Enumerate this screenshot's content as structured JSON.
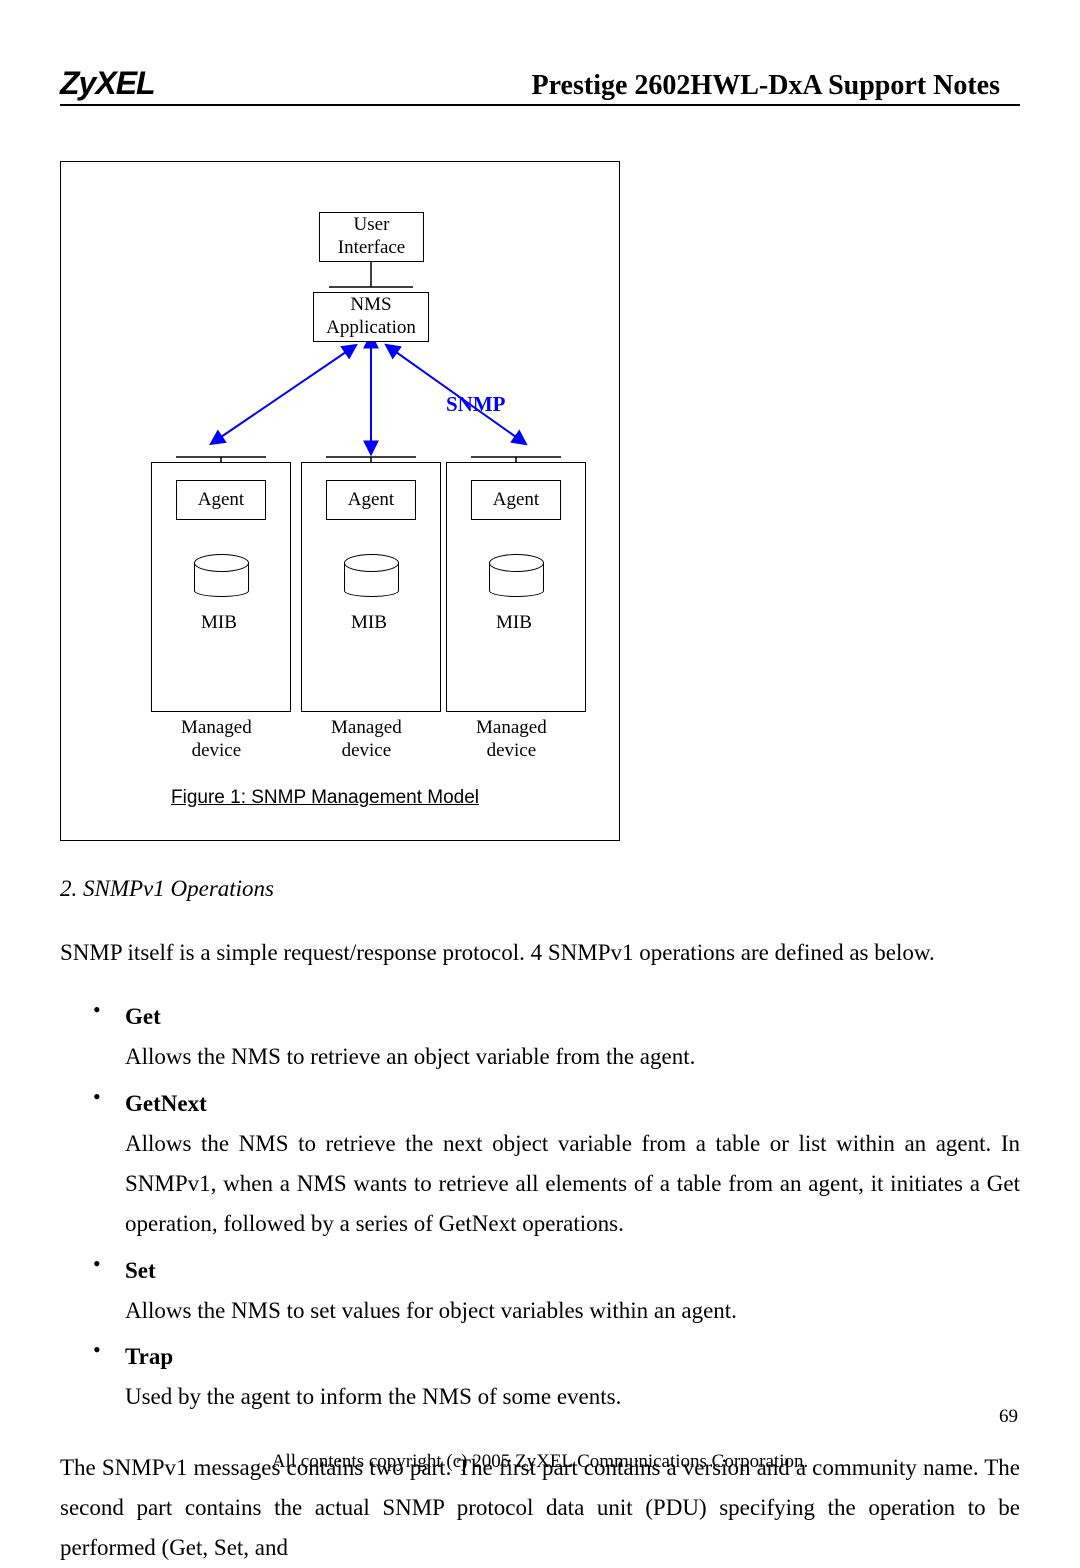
{
  "header": {
    "logo": "ZyXEL",
    "title": "Prestige 2602HWL-DxA Support Notes"
  },
  "diagram": {
    "user_interface": "User\nInterface",
    "nms_app": "NMS\nApplication",
    "snmp_label": "SNMP",
    "agent": "Agent",
    "mib": "MIB",
    "managed": "Managed\ndevice",
    "caption": "Figure 1: SNMP Management Model",
    "arrow_color": "#0000ff"
  },
  "section": {
    "heading": "2. SNMPv1 Operations",
    "intro": "SNMP itself is a simple request/response protocol. 4 SNMPv1 operations are defined as below.",
    "ops": [
      {
        "name": "Get",
        "desc": "Allows the NMS to retrieve an object variable from the agent."
      },
      {
        "name": "GetNext",
        "desc": "Allows the NMS to retrieve the next object variable from a table or list within an agent. In SNMPv1, when a NMS wants to retrieve all elements of a table from an agent, it initiates a Get operation, followed by a series of GetNext operations."
      },
      {
        "name": "Set",
        "desc": "Allows the NMS to set values for object variables within an agent."
      },
      {
        "name": "Trap",
        "desc": "Used by the agent to inform the NMS of some events."
      }
    ],
    "para2": "The SNMPv1 messages contains two part. The first part contains a version and a community name. The second part contains the actual SNMP protocol data unit (PDU) specifying the operation to be performed (Get, Set, and"
  },
  "footer": {
    "copyright": "All contents copyright (c) 2005 ZyXEL Communications Corporation.",
    "page": "69"
  }
}
